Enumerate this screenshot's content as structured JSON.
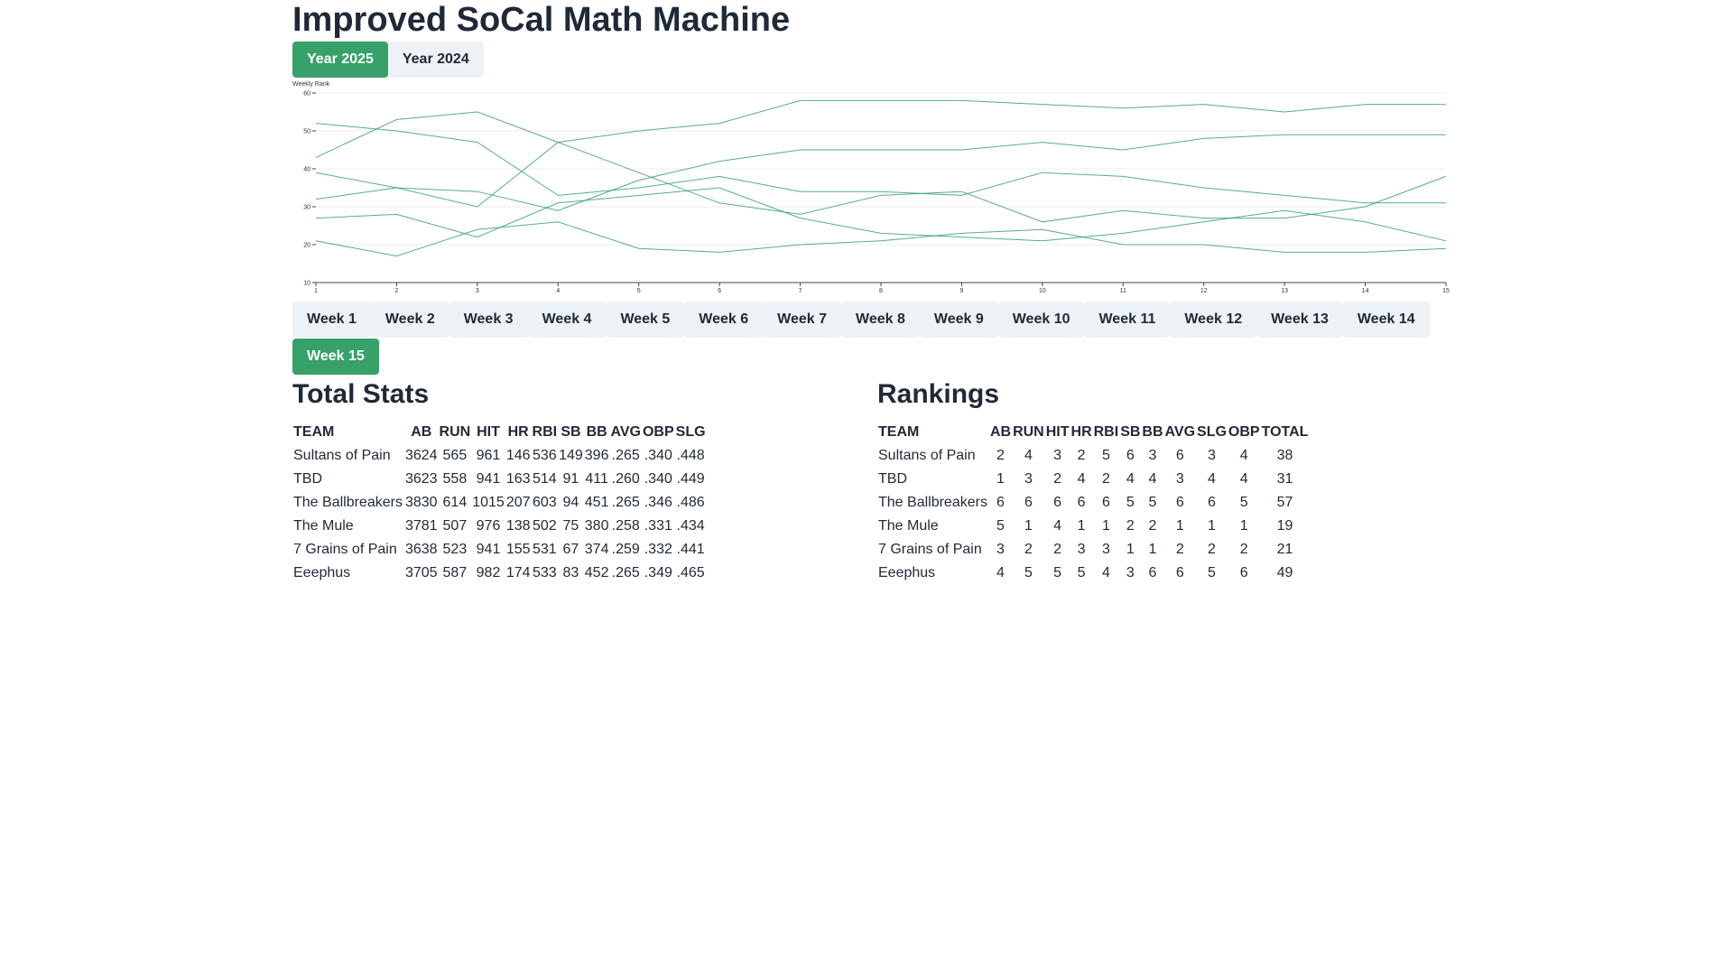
{
  "title": "Improved SoCal Math Machine",
  "year_tabs": [
    {
      "label": "Year 2025",
      "active": true
    },
    {
      "label": "Year 2024",
      "active": false
    }
  ],
  "chart_data": {
    "type": "line",
    "title": "",
    "ylabel": "Weekly Rank",
    "xlabel": "",
    "x": [
      1,
      2,
      3,
      4,
      5,
      6,
      7,
      8,
      9,
      10,
      11,
      12,
      13,
      14,
      15
    ],
    "xlim": [
      1,
      15
    ],
    "ylim": [
      10,
      60
    ],
    "yticks": [
      10,
      20,
      30,
      40,
      50,
      60
    ],
    "grid": true,
    "line_color": "#38a169",
    "series": [
      {
        "values": [
          43,
          53,
          55,
          47,
          39,
          31,
          28,
          33,
          34,
          26,
          29,
          27,
          27,
          30,
          38
        ]
      },
      {
        "values": [
          52,
          50,
          47,
          33,
          35,
          38,
          34,
          34,
          33,
          39,
          38,
          35,
          33,
          31,
          31
        ]
      },
      {
        "values": [
          39,
          35,
          30,
          47,
          50,
          52,
          58,
          58,
          58,
          57,
          56,
          57,
          55,
          57,
          57
        ]
      },
      {
        "values": [
          32,
          35,
          34,
          29,
          37,
          42,
          45,
          45,
          45,
          47,
          45,
          48,
          49,
          49,
          49
        ]
      },
      {
        "values": [
          27,
          28,
          22,
          31,
          33,
          35,
          27,
          23,
          22,
          21,
          23,
          26,
          29,
          26,
          21
        ]
      },
      {
        "values": [
          21,
          17,
          24,
          26,
          19,
          18,
          20,
          21,
          23,
          24,
          20,
          20,
          18,
          18,
          19
        ]
      }
    ]
  },
  "week_tabs": [
    {
      "label": "Week 1",
      "active": false
    },
    {
      "label": "Week 2",
      "active": false
    },
    {
      "label": "Week 3",
      "active": false
    },
    {
      "label": "Week 4",
      "active": false
    },
    {
      "label": "Week 5",
      "active": false
    },
    {
      "label": "Week 6",
      "active": false
    },
    {
      "label": "Week 7",
      "active": false
    },
    {
      "label": "Week 8",
      "active": false
    },
    {
      "label": "Week 9",
      "active": false
    },
    {
      "label": "Week 10",
      "active": false
    },
    {
      "label": "Week 11",
      "active": false
    },
    {
      "label": "Week 12",
      "active": false
    },
    {
      "label": "Week 13",
      "active": false
    },
    {
      "label": "Week 14",
      "active": false
    },
    {
      "label": "Week 15",
      "active": true
    }
  ],
  "total_stats": {
    "title": "Total Stats",
    "columns": [
      "TEAM",
      "AB",
      "RUN",
      "HIT",
      "HR",
      "RBI",
      "SB",
      "BB",
      "AVG",
      "OBP",
      "SLG"
    ],
    "rows": [
      [
        "Sultans of Pain",
        "3624",
        "565",
        "961",
        "146",
        "536",
        "149",
        "396",
        ".265",
        ".340",
        ".448"
      ],
      [
        "TBD",
        "3623",
        "558",
        "941",
        "163",
        "514",
        "91",
        "411",
        ".260",
        ".340",
        ".449"
      ],
      [
        "The Ballbreakers",
        "3830",
        "614",
        "1015",
        "207",
        "603",
        "94",
        "451",
        ".265",
        ".346",
        ".486"
      ],
      [
        "The Mule",
        "3781",
        "507",
        "976",
        "138",
        "502",
        "75",
        "380",
        ".258",
        ".331",
        ".434"
      ],
      [
        "7 Grains of Pain",
        "3638",
        "523",
        "941",
        "155",
        "531",
        "67",
        "374",
        ".259",
        ".332",
        ".441"
      ],
      [
        "Eeephus",
        "3705",
        "587",
        "982",
        "174",
        "533",
        "83",
        "452",
        ".265",
        ".349",
        ".465"
      ]
    ]
  },
  "rankings": {
    "title": "Rankings",
    "columns": [
      "TEAM",
      "AB",
      "RUN",
      "HIT",
      "HR",
      "RBI",
      "SB",
      "BB",
      "AVG",
      "SLG",
      "OBP",
      "TOTAL"
    ],
    "rows": [
      [
        "Sultans of Pain",
        "2",
        "4",
        "3",
        "2",
        "5",
        "6",
        "3",
        "6",
        "3",
        "4",
        "38"
      ],
      [
        "TBD",
        "1",
        "3",
        "2",
        "4",
        "2",
        "4",
        "4",
        "3",
        "4",
        "4",
        "31"
      ],
      [
        "The Ballbreakers",
        "6",
        "6",
        "6",
        "6",
        "6",
        "5",
        "5",
        "6",
        "6",
        "5",
        "57"
      ],
      [
        "The Mule",
        "5",
        "1",
        "4",
        "1",
        "1",
        "2",
        "2",
        "1",
        "1",
        "1",
        "19"
      ],
      [
        "7 Grains of Pain",
        "3",
        "2",
        "2",
        "3",
        "3",
        "1",
        "1",
        "2",
        "2",
        "2",
        "21"
      ],
      [
        "Eeephus",
        "4",
        "5",
        "5",
        "5",
        "4",
        "3",
        "6",
        "6",
        "5",
        "6",
        "49"
      ]
    ]
  }
}
